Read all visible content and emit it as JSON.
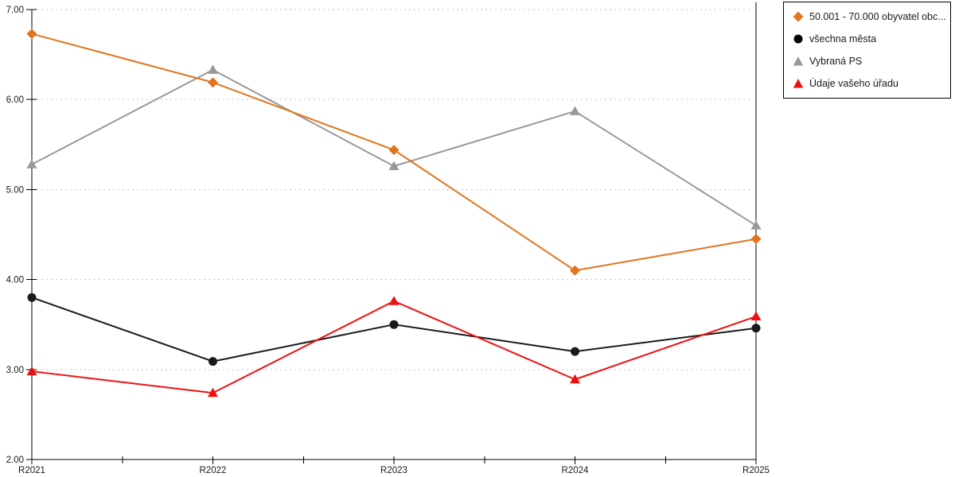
{
  "chart_data": {
    "type": "line",
    "title": "",
    "xlabel": "",
    "ylabel": "",
    "categories": [
      "R2021",
      "R2022",
      "R2023",
      "R2024",
      "R2025"
    ],
    "series": [
      {
        "name": "50.001 - 70.000 obyvatel obc...",
        "marker": "diamond",
        "color": "#E0751D",
        "values": [
          6.73,
          6.19,
          5.44,
          4.1,
          4.45
        ]
      },
      {
        "name": "všechna města",
        "marker": "circle",
        "color": "#1A1A1A",
        "values": [
          3.8,
          3.09,
          3.5,
          3.2,
          3.46
        ]
      },
      {
        "name": "Vybraná PS",
        "marker": "triangle",
        "color": "#999999",
        "values": [
          5.28,
          6.33,
          5.26,
          5.87,
          4.6
        ]
      },
      {
        "name": "Údaje vašeho úřadu",
        "marker": "triangle",
        "color": "#EE1010",
        "values": [
          2.98,
          2.74,
          3.76,
          2.89,
          3.59
        ]
      }
    ],
    "ylim": [
      2,
      7
    ],
    "yticks": [
      "7.00",
      "6.00",
      "5.00",
      "4.00",
      "3.00",
      "2.00"
    ],
    "ytick_values": [
      7,
      6,
      5,
      4,
      3,
      2
    ],
    "grid": "horizontal dotted",
    "gridline_color": "#C3C3C3",
    "axis_color": "#000000",
    "legend_position": "top-right"
  },
  "legend": {
    "items": [
      {
        "label": "50.001 - 70.000 obyvatel obc...",
        "marker": "diamond",
        "color": "#E0751D"
      },
      {
        "label": "všechna města",
        "marker": "circle",
        "color": "#000000"
      },
      {
        "label": "Vybraná PS",
        "marker": "triangle",
        "color": "#999999"
      },
      {
        "label": "Údaje vašeho úřadu",
        "marker": "triangle",
        "color": "#EE1010"
      }
    ]
  }
}
